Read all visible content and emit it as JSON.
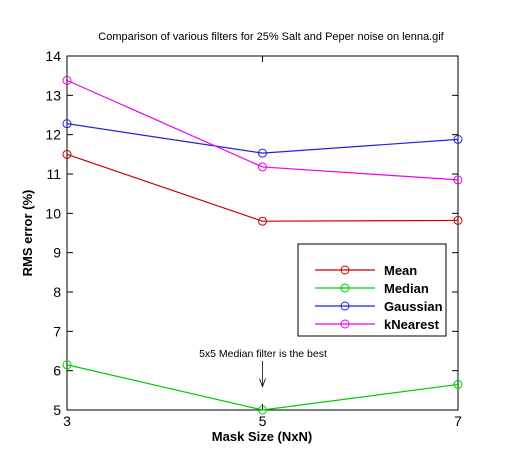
{
  "chart_data": {
    "type": "line",
    "title": "Comparison of various filters for 25% Salt and Peper noise on lenna.gif",
    "xlabel": "Mask Size (NxN)",
    "ylabel": "RMS error (%)",
    "x": [
      3,
      5,
      7
    ],
    "xlim": [
      3,
      7
    ],
    "ylim": [
      5,
      14
    ],
    "xticks": [
      "3",
      "5",
      "7"
    ],
    "yticks": [
      "5",
      "6",
      "7",
      "8",
      "9",
      "10",
      "11",
      "12",
      "13",
      "14"
    ],
    "grid": false,
    "legend_position": "right",
    "series": [
      {
        "name": "Mean",
        "color": "#cc0000",
        "values": [
          11.5,
          9.8,
          9.82
        ]
      },
      {
        "name": "Median",
        "color": "#00cc00",
        "values": [
          6.15,
          5.0,
          5.65
        ]
      },
      {
        "name": "Gaussian",
        "color": "#2222dd",
        "values": [
          12.28,
          11.53,
          11.88
        ]
      },
      {
        "name": "kNearest",
        "color": "#ee00ee",
        "values": [
          13.38,
          11.18,
          10.85
        ]
      }
    ],
    "annotation": {
      "text": "5x5 Median filter is the best",
      "x": 5,
      "arrow_to_y": 5.9
    }
  }
}
